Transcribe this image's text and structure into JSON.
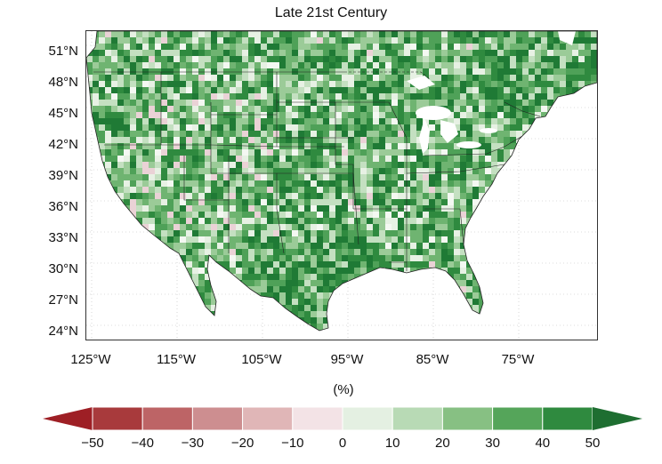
{
  "title": "Late 21st Century",
  "unit_label": "(%)",
  "lat_labels": [
    "51°N",
    "48°N",
    "45°N",
    "42°N",
    "39°N",
    "36°N",
    "33°N",
    "30°N",
    "27°N",
    "24°N"
  ],
  "lon_labels": [
    "125°W",
    "115°W",
    "105°W",
    "95°W",
    "85°W",
    "75°W"
  ],
  "colorbar": {
    "labels": [
      "−50",
      "−40",
      "−30",
      "−20",
      "−10",
      "0",
      "10",
      "20",
      "30",
      "40",
      "50"
    ],
    "colors": [
      "#9e1f25",
      "#a83a3c",
      "#bd6466",
      "#cd8e90",
      "#e0b6b7",
      "#f3e3e6",
      "#e4f0e2",
      "#b8dab5",
      "#87c083",
      "#55a55a",
      "#2f8a3f",
      "#1e6e31"
    ]
  },
  "map": {
    "land_palette": [
      "#1f7a35",
      "#2f8a3f",
      "#4fa158",
      "#6fb471",
      "#9bcb98",
      "#c4e0c1",
      "#e7f1e4",
      "#f4f8f2",
      "#ead2d6"
    ],
    "water_color": "#ffffff",
    "grid_color": "#bdbdbd",
    "boundary_color": "#222222"
  }
}
